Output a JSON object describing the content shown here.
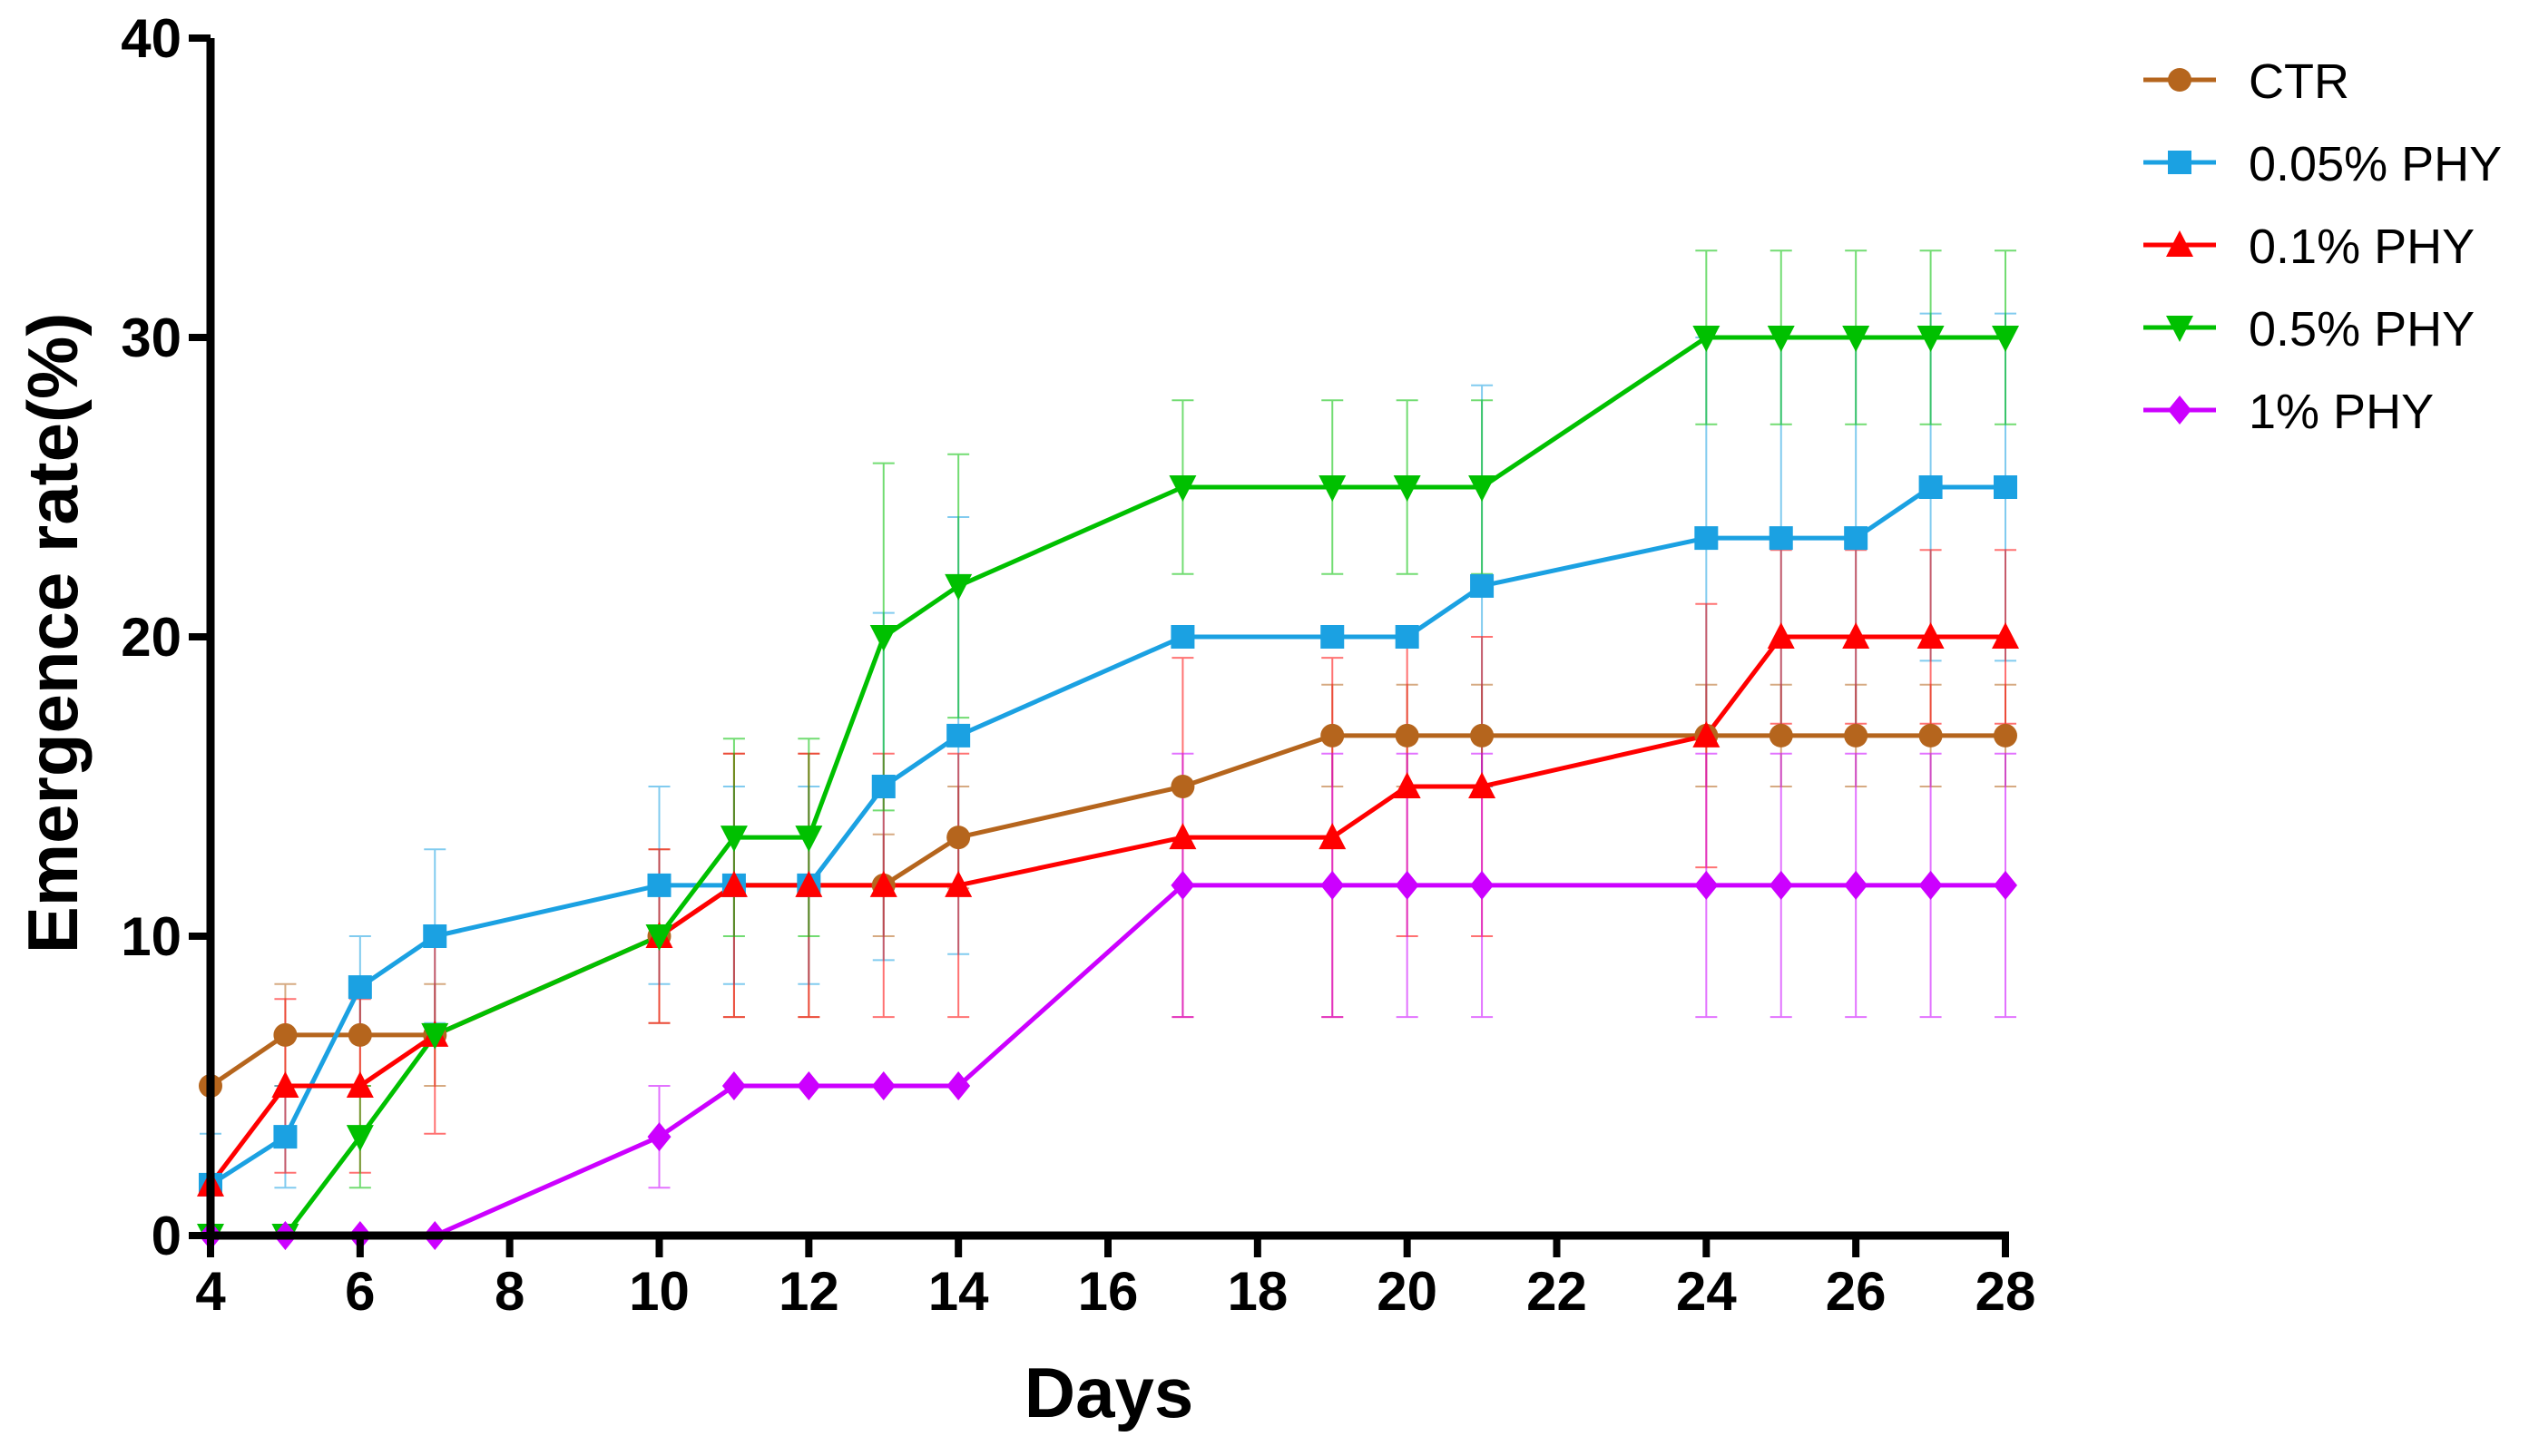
{
  "chart_data": {
    "type": "line",
    "title": "",
    "xlabel": "Days",
    "ylabel": "Emergence rate(%)",
    "xlim": [
      4,
      28
    ],
    "ylim": [
      0,
      40
    ],
    "x_ticks": [
      "4",
      "6",
      "8",
      "10",
      "12",
      "14",
      "16",
      "18",
      "20",
      "22",
      "24",
      "26",
      "28"
    ],
    "y_ticks": [
      "0",
      "10",
      "20",
      "30",
      "40"
    ],
    "legend_position": "top-right",
    "x": [
      4,
      5,
      6,
      7,
      10,
      11,
      12,
      13,
      14,
      17,
      19,
      20,
      21,
      24,
      25,
      26,
      27,
      28
    ],
    "series": [
      {
        "name": "CTR",
        "color": "#B5651D",
        "marker": "circle",
        "values": [
          5,
          6.7,
          6.7,
          6.7,
          10,
          11.7,
          11.7,
          11.7,
          13.3,
          15,
          16.7,
          16.7,
          16.7,
          16.7,
          16.7,
          16.7,
          16.7,
          16.7
        ],
        "errors": [
          0,
          1.7,
          1.7,
          1.7,
          2.9,
          4.4,
          4.4,
          1.7,
          1.7,
          0,
          1.7,
          1.7,
          1.7,
          1.7,
          1.7,
          1.7,
          1.7,
          1.7
        ]
      },
      {
        "name": "0.05% PHY",
        "color": "#1BA1E2",
        "marker": "square",
        "values": [
          1.7,
          3.3,
          8.3,
          10,
          11.7,
          11.7,
          11.7,
          15,
          16.7,
          20,
          20,
          20,
          21.7,
          23.3,
          23.3,
          23.3,
          25,
          25
        ],
        "errors": [
          1.7,
          1.7,
          1.7,
          2.9,
          3.3,
          3.3,
          3.3,
          5.8,
          7.3,
          0,
          0,
          0,
          6.7,
          6.7,
          6.7,
          6.7,
          5.8,
          5.8
        ]
      },
      {
        "name": "0.1% PHY",
        "color": "#FF0000",
        "marker": "triangle-up",
        "values": [
          1.7,
          5,
          5,
          6.7,
          10,
          11.7,
          11.7,
          11.7,
          11.7,
          13.3,
          13.3,
          15,
          15,
          16.7,
          20,
          20,
          20,
          20
        ],
        "errors": [
          0,
          2.9,
          2.9,
          3.3,
          2.9,
          4.4,
          4.4,
          4.4,
          4.4,
          6.0,
          6.0,
          5.0,
          5.0,
          4.4,
          2.9,
          2.9,
          2.9,
          2.9
        ]
      },
      {
        "name": "0.5% PHY",
        "color": "#00C000",
        "marker": "triangle-down",
        "values": [
          0,
          0,
          3.3,
          6.7,
          10,
          13.3,
          13.3,
          20,
          21.7,
          25,
          25,
          25,
          25,
          30,
          30,
          30,
          30,
          30
        ],
        "errors": [
          0,
          0,
          1.7,
          0,
          0,
          3.3,
          3.3,
          5.8,
          4.4,
          2.9,
          2.9,
          2.9,
          2.9,
          2.9,
          2.9,
          2.9,
          2.9,
          2.9
        ]
      },
      {
        "name": "1% PHY",
        "color": "#CC00FF",
        "marker": "diamond",
        "values": [
          0,
          0,
          0,
          0,
          3.3,
          5,
          5,
          5,
          5,
          11.7,
          11.7,
          11.7,
          11.7,
          11.7,
          11.7,
          11.7,
          11.7,
          11.7
        ],
        "errors": [
          0,
          0,
          0,
          0,
          1.7,
          0,
          0,
          0,
          0,
          4.4,
          4.4,
          4.4,
          4.4,
          4.4,
          4.4,
          4.4,
          4.4,
          4.4
        ]
      }
    ]
  }
}
